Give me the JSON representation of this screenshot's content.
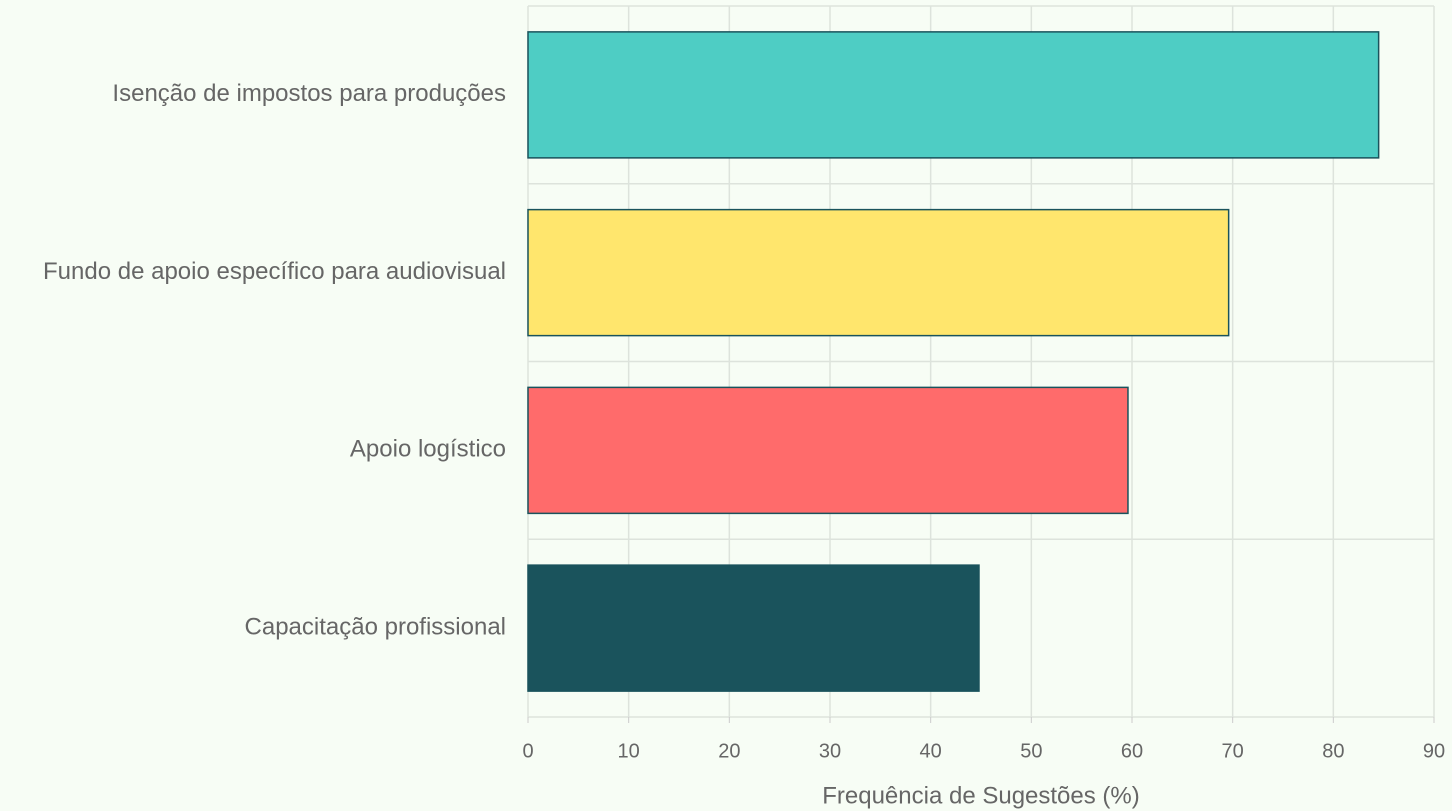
{
  "chart_data": {
    "type": "barh",
    "categories": [
      "Isenção de impostos para produções",
      "Fundo de apoio específico para audiovisual",
      "Apoio logístico",
      "Capacitação profissional"
    ],
    "values": [
      84.5,
      69.6,
      59.6,
      44.8
    ],
    "colors": [
      "#4ecdc4",
      "#ffe66d",
      "#ff6b6b",
      "#1a535c"
    ],
    "xlabel": "Frequência de Sugestões (%)",
    "xlim": [
      0,
      90
    ],
    "xticks": [
      0,
      10,
      20,
      30,
      40,
      50,
      60,
      70,
      80,
      90
    ],
    "grid": true
  }
}
